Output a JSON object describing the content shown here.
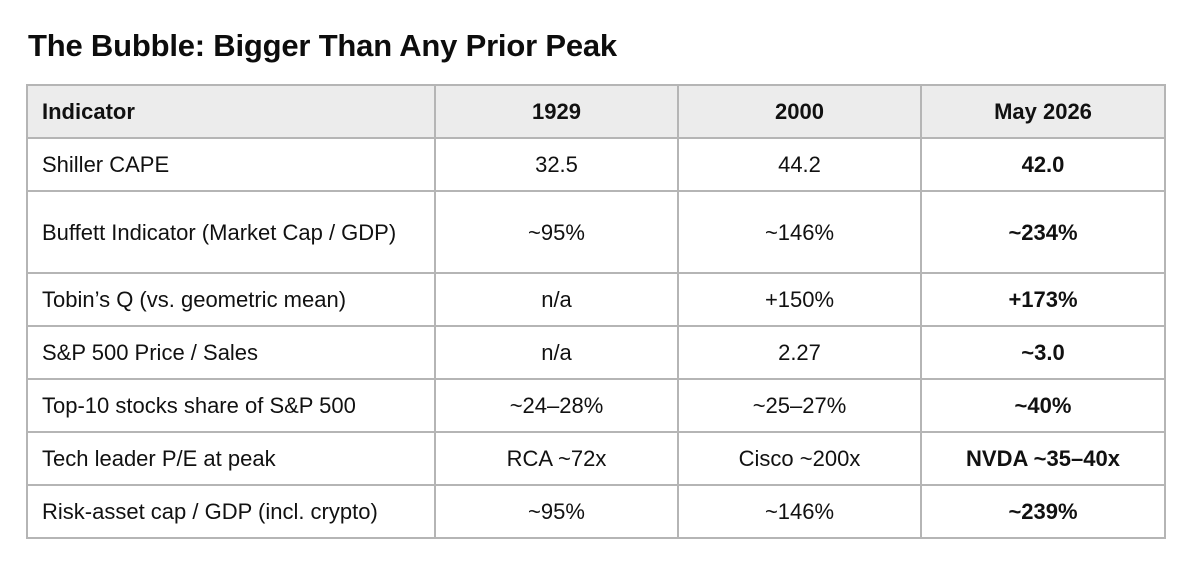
{
  "title": "The Bubble: Bigger Than Any Prior Peak",
  "table": {
    "headers": [
      "Indicator",
      "1929",
      "2000",
      "May 2026"
    ],
    "rows": [
      [
        "Shiller CAPE",
        "32.5",
        "44.2",
        "42.0"
      ],
      [
        "Buffett Indicator (Market Cap / GDP)",
        "~95%",
        "~146%",
        "~234%"
      ],
      [
        "Tobin’s Q (vs. geometric mean)",
        "n/a",
        "+150%",
        "+173%"
      ],
      [
        "S&P 500 Price / Sales",
        "n/a",
        "2.27",
        "~3.0"
      ],
      [
        "Top-10 stocks share of S&P 500",
        "~24–28%",
        "~25–27%",
        "~40%"
      ],
      [
        "Tech leader P/E at peak",
        "RCA ~72x",
        "Cisco ~200x",
        "NVDA ~35–40x"
      ],
      [
        "Risk-asset cap / GDP (incl. crypto)",
        "~95%",
        "~146%",
        "~239%"
      ]
    ]
  }
}
